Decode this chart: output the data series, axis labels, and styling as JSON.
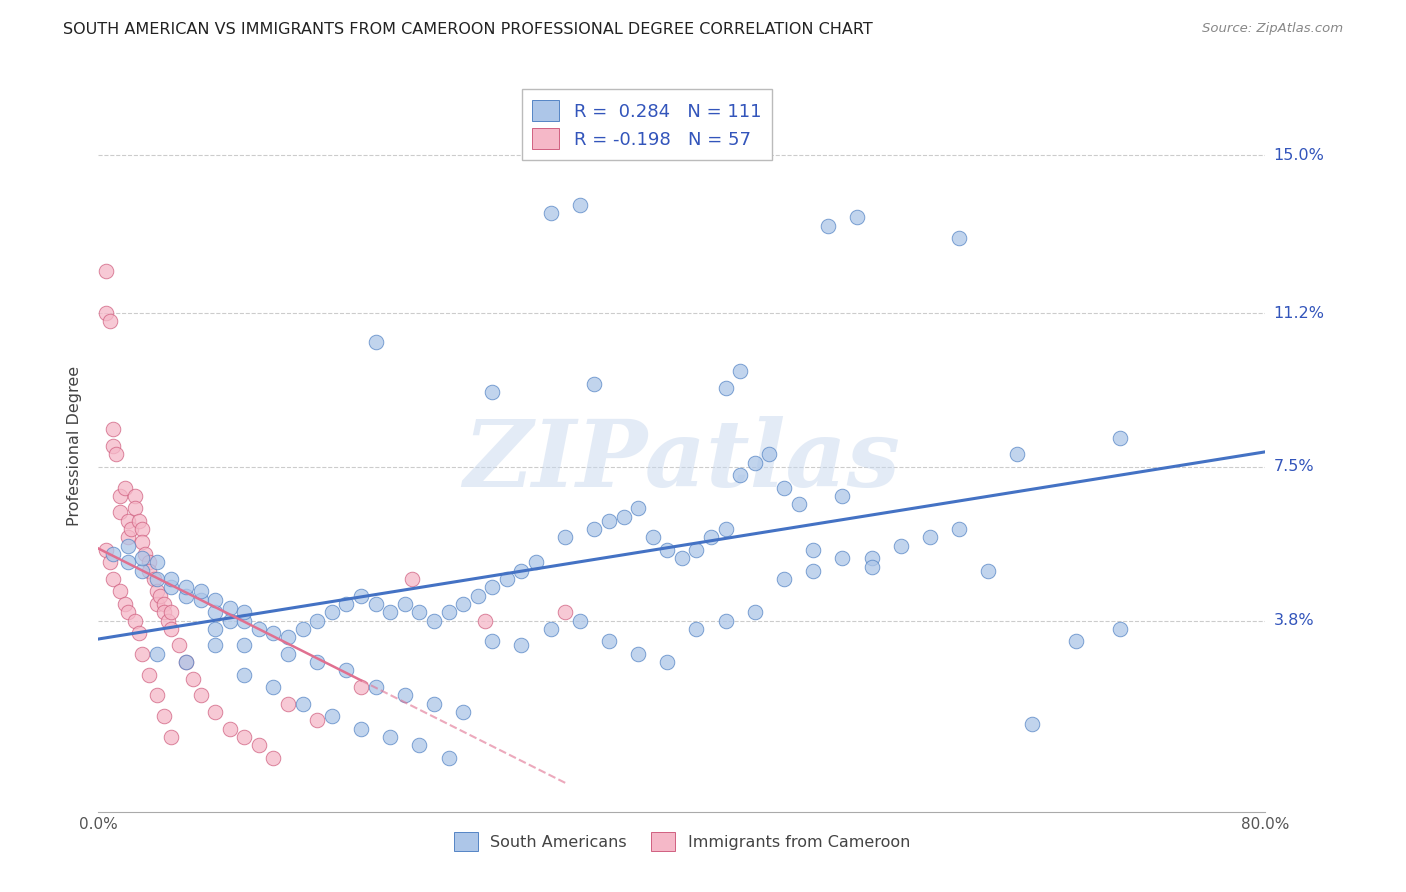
{
  "title": "SOUTH AMERICAN VS IMMIGRANTS FROM CAMEROON PROFESSIONAL DEGREE CORRELATION CHART",
  "source": "Source: ZipAtlas.com",
  "ylabel": "Professional Degree",
  "ytick_labels": [
    "15.0%",
    "11.2%",
    "7.5%",
    "3.8%"
  ],
  "ytick_values": [
    0.15,
    0.112,
    0.075,
    0.038
  ],
  "xlim": [
    0.0,
    0.8
  ],
  "ylim": [
    -0.008,
    0.168
  ],
  "blue_R": 0.284,
  "blue_N": 111,
  "pink_R": -0.198,
  "pink_N": 57,
  "blue_color": "#adc6e8",
  "pink_color": "#f5b8c8",
  "blue_edge_color": "#5585c5",
  "pink_edge_color": "#d06080",
  "blue_line_color": "#4472c4",
  "pink_line_color": "#e07090",
  "legend_text_color": "#3355bb",
  "watermark": "ZIPatlas",
  "blue_scatter_x": [
    0.31,
    0.33,
    0.5,
    0.52,
    0.59,
    0.19,
    0.27,
    0.34,
    0.43,
    0.44,
    0.01,
    0.02,
    0.02,
    0.03,
    0.03,
    0.04,
    0.04,
    0.05,
    0.05,
    0.06,
    0.06,
    0.07,
    0.07,
    0.08,
    0.08,
    0.09,
    0.09,
    0.1,
    0.1,
    0.11,
    0.12,
    0.13,
    0.14,
    0.15,
    0.16,
    0.17,
    0.18,
    0.19,
    0.2,
    0.21,
    0.22,
    0.23,
    0.24,
    0.25,
    0.26,
    0.27,
    0.28,
    0.29,
    0.3,
    0.32,
    0.34,
    0.35,
    0.36,
    0.37,
    0.38,
    0.39,
    0.4,
    0.41,
    0.42,
    0.43,
    0.44,
    0.45,
    0.46,
    0.47,
    0.48,
    0.49,
    0.51,
    0.53,
    0.63,
    0.7,
    0.08,
    0.1,
    0.13,
    0.15,
    0.17,
    0.19,
    0.21,
    0.23,
    0.25,
    0.27,
    0.29,
    0.31,
    0.33,
    0.35,
    0.37,
    0.39,
    0.41,
    0.43,
    0.45,
    0.47,
    0.49,
    0.51,
    0.53,
    0.55,
    0.57,
    0.59,
    0.61,
    0.64,
    0.67,
    0.7,
    0.04,
    0.06,
    0.08,
    0.1,
    0.12,
    0.14,
    0.16,
    0.18,
    0.2,
    0.22,
    0.24
  ],
  "blue_scatter_y": [
    0.136,
    0.138,
    0.133,
    0.135,
    0.13,
    0.105,
    0.093,
    0.095,
    0.094,
    0.098,
    0.054,
    0.052,
    0.056,
    0.05,
    0.053,
    0.052,
    0.048,
    0.046,
    0.048,
    0.044,
    0.046,
    0.043,
    0.045,
    0.04,
    0.043,
    0.041,
    0.038,
    0.038,
    0.04,
    0.036,
    0.035,
    0.034,
    0.036,
    0.038,
    0.04,
    0.042,
    0.044,
    0.042,
    0.04,
    0.042,
    0.04,
    0.038,
    0.04,
    0.042,
    0.044,
    0.046,
    0.048,
    0.05,
    0.052,
    0.058,
    0.06,
    0.062,
    0.063,
    0.065,
    0.058,
    0.055,
    0.053,
    0.055,
    0.058,
    0.06,
    0.073,
    0.076,
    0.078,
    0.07,
    0.066,
    0.055,
    0.068,
    0.053,
    0.078,
    0.082,
    0.036,
    0.032,
    0.03,
    0.028,
    0.026,
    0.022,
    0.02,
    0.018,
    0.016,
    0.033,
    0.032,
    0.036,
    0.038,
    0.033,
    0.03,
    0.028,
    0.036,
    0.038,
    0.04,
    0.048,
    0.05,
    0.053,
    0.051,
    0.056,
    0.058,
    0.06,
    0.05,
    0.013,
    0.033,
    0.036,
    0.03,
    0.028,
    0.032,
    0.025,
    0.022,
    0.018,
    0.015,
    0.012,
    0.01,
    0.008,
    0.005
  ],
  "pink_scatter_x": [
    0.005,
    0.005,
    0.008,
    0.01,
    0.01,
    0.012,
    0.015,
    0.015,
    0.018,
    0.02,
    0.02,
    0.022,
    0.025,
    0.025,
    0.028,
    0.03,
    0.03,
    0.032,
    0.035,
    0.035,
    0.038,
    0.04,
    0.04,
    0.042,
    0.045,
    0.045,
    0.048,
    0.05,
    0.05,
    0.055,
    0.06,
    0.065,
    0.07,
    0.08,
    0.09,
    0.1,
    0.11,
    0.12,
    0.13,
    0.15,
    0.18,
    0.215,
    0.265,
    0.32,
    0.005,
    0.008,
    0.01,
    0.015,
    0.018,
    0.02,
    0.025,
    0.028,
    0.03,
    0.035,
    0.04,
    0.045,
    0.05
  ],
  "pink_scatter_y": [
    0.122,
    0.112,
    0.11,
    0.084,
    0.08,
    0.078,
    0.068,
    0.064,
    0.07,
    0.062,
    0.058,
    0.06,
    0.068,
    0.065,
    0.062,
    0.06,
    0.057,
    0.054,
    0.052,
    0.05,
    0.048,
    0.045,
    0.042,
    0.044,
    0.042,
    0.04,
    0.038,
    0.04,
    0.036,
    0.032,
    0.028,
    0.024,
    0.02,
    0.016,
    0.012,
    0.01,
    0.008,
    0.005,
    0.018,
    0.014,
    0.022,
    0.048,
    0.038,
    0.04,
    0.055,
    0.052,
    0.048,
    0.045,
    0.042,
    0.04,
    0.038,
    0.035,
    0.03,
    0.025,
    0.02,
    0.015,
    0.01
  ]
}
